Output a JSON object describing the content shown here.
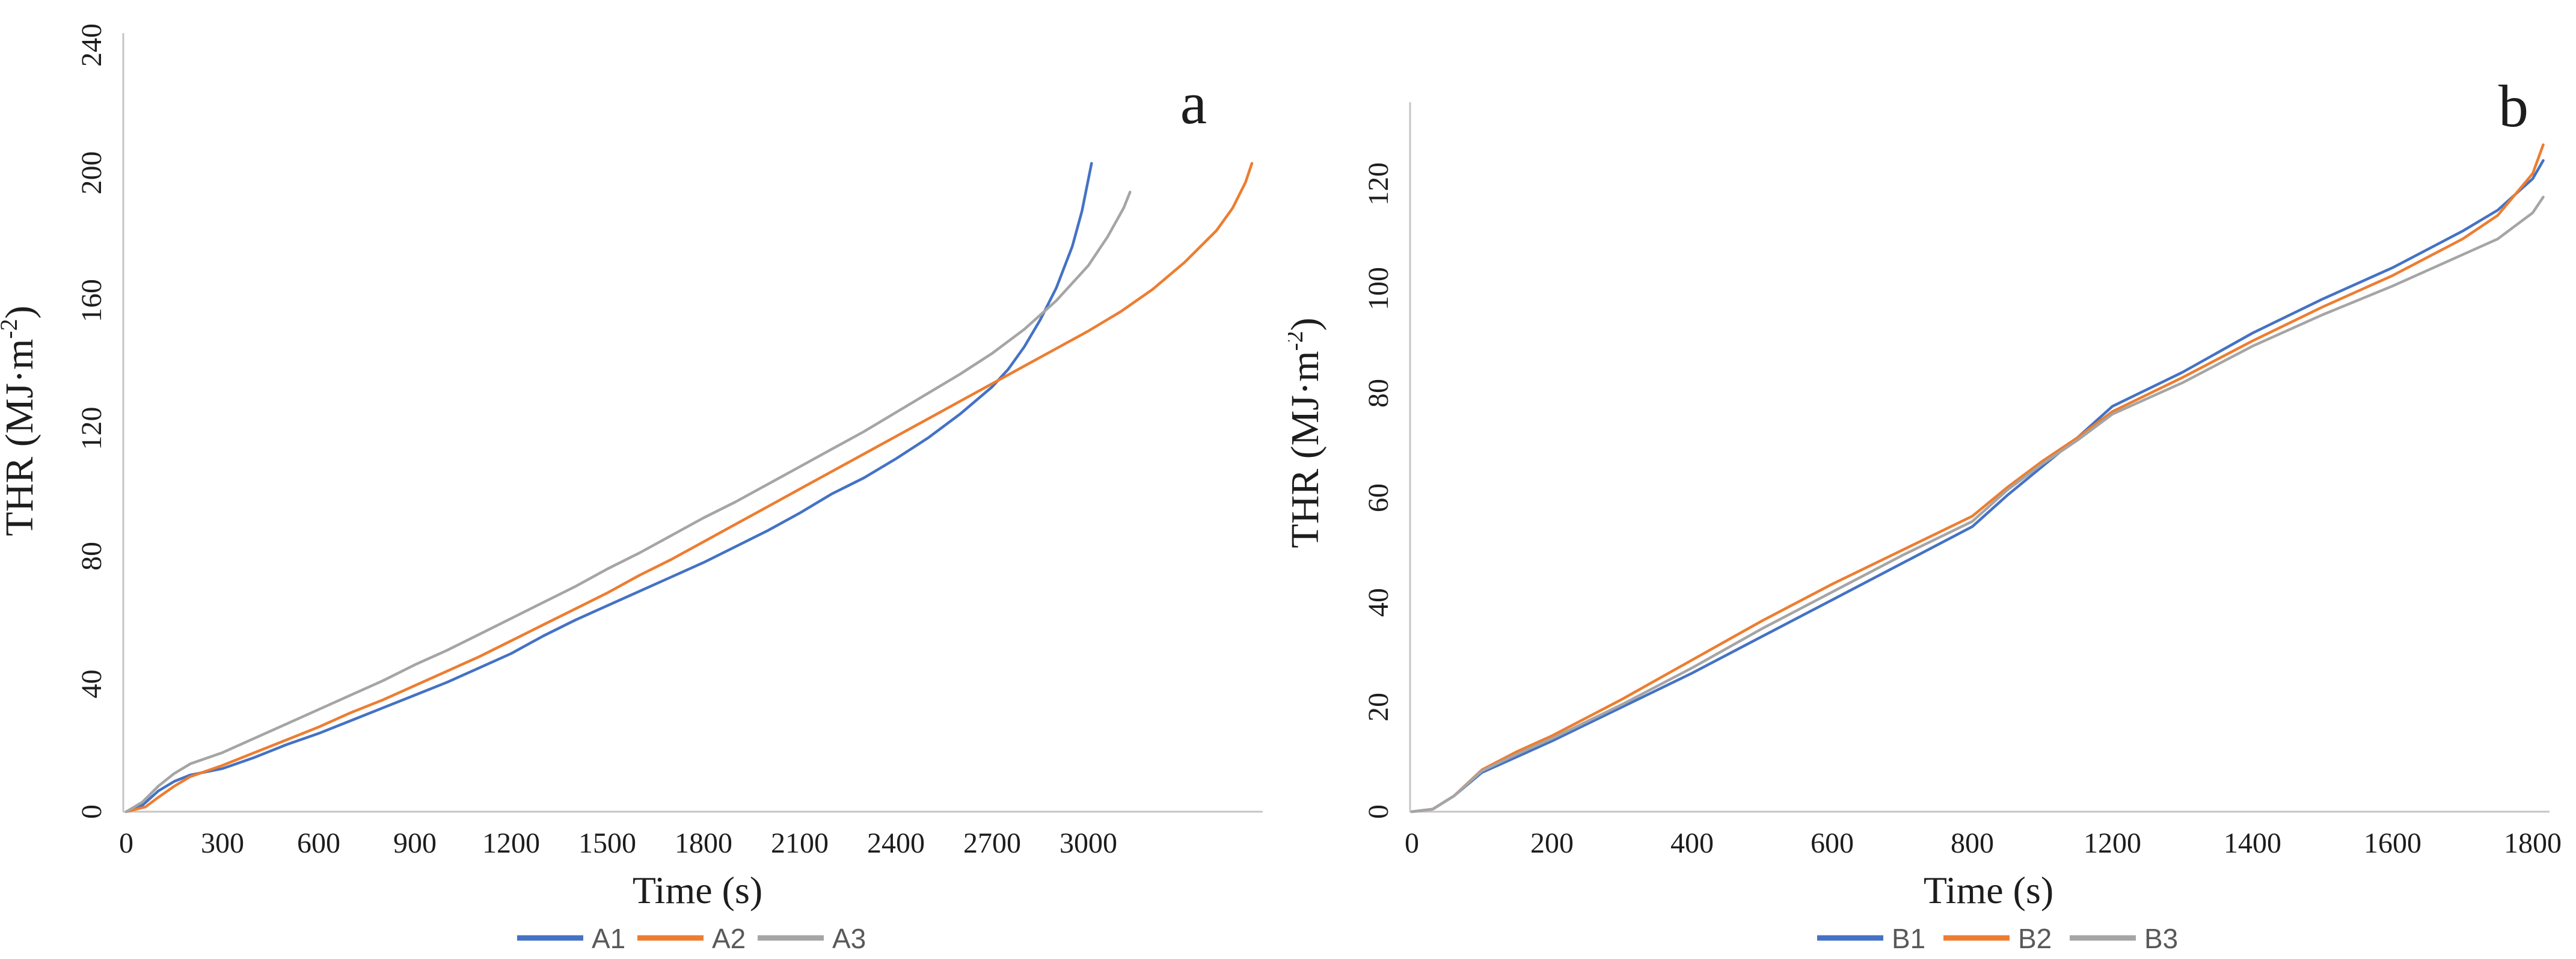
{
  "figure": {
    "background": "#ffffff",
    "axis_line_color": "#c6c6c6",
    "tick_text_color": "#1d1d1d",
    "legend_text_color": "#595959"
  },
  "chart_data": [
    {
      "type": "line",
      "panel_label": "a",
      "xlabel": "Time (s)",
      "ylabel": "THR (MJ·m⁻²)",
      "ylabel_parts": {
        "prefix": "THR (MJ·m",
        "sup": "-2",
        "suffix": ")"
      },
      "x_ticks": [
        0,
        300,
        600,
        900,
        1200,
        1500,
        1800,
        2100,
        2400,
        2700,
        3000
      ],
      "y_ticks": [
        0,
        40,
        80,
        120,
        160,
        200,
        240
      ],
      "xlim": [
        0,
        3540
      ],
      "ylim": [
        0,
        240
      ],
      "grid": false,
      "legend_position": "bottom",
      "series": [
        {
          "name": "A1",
          "color": "#4472C4",
          "points": [
            [
              0,
              0
            ],
            [
              50,
              2
            ],
            [
              100,
              6.5
            ],
            [
              150,
              9.5
            ],
            [
              200,
              11.5
            ],
            [
              300,
              13.5
            ],
            [
              400,
              17
            ],
            [
              500,
              21
            ],
            [
              600,
              24.5
            ],
            [
              700,
              28.5
            ],
            [
              800,
              32.5
            ],
            [
              900,
              36.5
            ],
            [
              1000,
              40.5
            ],
            [
              1100,
              45
            ],
            [
              1200,
              49.5
            ],
            [
              1300,
              55
            ],
            [
              1400,
              60
            ],
            [
              1500,
              64.5
            ],
            [
              1600,
              69
            ],
            [
              1700,
              73.5
            ],
            [
              1800,
              78
            ],
            [
              1900,
              83
            ],
            [
              2000,
              88
            ],
            [
              2100,
              93.5
            ],
            [
              2200,
              99.5
            ],
            [
              2300,
              104.5
            ],
            [
              2400,
              110.5
            ],
            [
              2500,
              117
            ],
            [
              2600,
              124.5
            ],
            [
              2700,
              133
            ],
            [
              2750,
              138.5
            ],
            [
              2800,
              145.5
            ],
            [
              2850,
              154
            ],
            [
              2900,
              164
            ],
            [
              2950,
              177
            ],
            [
              2980,
              188
            ],
            [
              3010,
              203
            ]
          ]
        },
        {
          "name": "A2",
          "color": "#ED7D31",
          "points": [
            [
              0,
              0
            ],
            [
              60,
              1.5
            ],
            [
              100,
              4.5
            ],
            [
              150,
              8
            ],
            [
              200,
              11
            ],
            [
              300,
              14.5
            ],
            [
              400,
              18.5
            ],
            [
              500,
              22.5
            ],
            [
              600,
              26.5
            ],
            [
              700,
              31
            ],
            [
              800,
              35
            ],
            [
              900,
              39.5
            ],
            [
              1000,
              44
            ],
            [
              1100,
              48.5
            ],
            [
              1200,
              53.5
            ],
            [
              1300,
              58.5
            ],
            [
              1400,
              63.5
            ],
            [
              1500,
              68.5
            ],
            [
              1600,
              74
            ],
            [
              1700,
              79
            ],
            [
              1800,
              84.5
            ],
            [
              1900,
              90
            ],
            [
              2000,
              95.5
            ],
            [
              2100,
              101
            ],
            [
              2200,
              106.5
            ],
            [
              2300,
              112
            ],
            [
              2400,
              117.5
            ],
            [
              2500,
              123
            ],
            [
              2600,
              128.5
            ],
            [
              2700,
              134
            ],
            [
              2800,
              139.5
            ],
            [
              2900,
              145
            ],
            [
              3000,
              150.5
            ],
            [
              3100,
              156.5
            ],
            [
              3200,
              163.5
            ],
            [
              3300,
              172
            ],
            [
              3400,
              182
            ],
            [
              3450,
              189
            ],
            [
              3490,
              197
            ],
            [
              3510,
              203
            ]
          ]
        },
        {
          "name": "A3",
          "color": "#A5A5A5",
          "points": [
            [
              0,
              0
            ],
            [
              50,
              3
            ],
            [
              100,
              8
            ],
            [
              150,
              12
            ],
            [
              200,
              15
            ],
            [
              300,
              18.5
            ],
            [
              400,
              23
            ],
            [
              500,
              27.5
            ],
            [
              600,
              32
            ],
            [
              700,
              36.5
            ],
            [
              800,
              41
            ],
            [
              900,
              46
            ],
            [
              1000,
              50.5
            ],
            [
              1100,
              55.5
            ],
            [
              1200,
              60.5
            ],
            [
              1300,
              65.5
            ],
            [
              1400,
              70.5
            ],
            [
              1500,
              76
            ],
            [
              1600,
              81
            ],
            [
              1700,
              86.5
            ],
            [
              1800,
              92
            ],
            [
              1900,
              97
            ],
            [
              2000,
              102.5
            ],
            [
              2100,
              108
            ],
            [
              2200,
              113.5
            ],
            [
              2300,
              119
            ],
            [
              2400,
              125
            ],
            [
              2500,
              131
            ],
            [
              2600,
              137
            ],
            [
              2700,
              143.5
            ],
            [
              2800,
              151
            ],
            [
              2900,
              160
            ],
            [
              3000,
              171
            ],
            [
              3060,
              180
            ],
            [
              3110,
              189
            ],
            [
              3130,
              194
            ]
          ]
        }
      ]
    },
    {
      "type": "line",
      "panel_label": "b",
      "xlabel": "Time (s)",
      "ylabel": "THR (MJ·m⁻²)",
      "ylabel_parts": {
        "prefix": "THR (MJ·m",
        "sup": "-2",
        "suffix": ")"
      },
      "x_ticks": [
        0,
        200,
        400,
        600,
        800,
        1200,
        1400,
        1600,
        1800
      ],
      "y_ticks": [
        0,
        20,
        40,
        60,
        80,
        100,
        120
      ],
      "xlim": [
        0,
        1830
      ],
      "ylim": [
        0,
        130
      ],
      "grid": false,
      "legend_position": "bottom",
      "x_tick_note": "labels evenly spaced; 1000 label skipped between 800 and 1200",
      "series": [
        {
          "name": "B1",
          "color": "#4472C4",
          "points": [
            [
              0,
              0
            ],
            [
              30,
              0.5
            ],
            [
              60,
              3
            ],
            [
              100,
              7.5
            ],
            [
              150,
              10.5
            ],
            [
              200,
              13.5
            ],
            [
              300,
              20
            ],
            [
              400,
              26.5
            ],
            [
              500,
              33.5
            ],
            [
              600,
              40.5
            ],
            [
              700,
              47.5
            ],
            [
              800,
              54.5
            ],
            [
              900,
              60.5
            ],
            [
              1000,
              66
            ],
            [
              1100,
              71.5
            ],
            [
              1200,
              77.5
            ],
            [
              1300,
              84
            ],
            [
              1400,
              91.5
            ],
            [
              1500,
              98
            ],
            [
              1600,
              104
            ],
            [
              1700,
              111
            ],
            [
              1750,
              115
            ],
            [
              1800,
              121
            ],
            [
              1815,
              124.5
            ]
          ]
        },
        {
          "name": "B2",
          "color": "#ED7D31",
          "points": [
            [
              0,
              0
            ],
            [
              30,
              0.5
            ],
            [
              60,
              3
            ],
            [
              100,
              8
            ],
            [
              150,
              11.5
            ],
            [
              200,
              14.5
            ],
            [
              300,
              21.5
            ],
            [
              400,
              29
            ],
            [
              500,
              36.5
            ],
            [
              600,
              43.5
            ],
            [
              700,
              50
            ],
            [
              800,
              56.5
            ],
            [
              900,
              62
            ],
            [
              1000,
              67
            ],
            [
              1100,
              71.5
            ],
            [
              1200,
              76.5
            ],
            [
              1300,
              83
            ],
            [
              1400,
              90
            ],
            [
              1500,
              96.5
            ],
            [
              1600,
              102.5
            ],
            [
              1700,
              109.5
            ],
            [
              1750,
              114
            ],
            [
              1800,
              122
            ],
            [
              1815,
              127.5
            ]
          ]
        },
        {
          "name": "B3",
          "color": "#A5A5A5",
          "points": [
            [
              0,
              0
            ],
            [
              30,
              0.5
            ],
            [
              60,
              3
            ],
            [
              100,
              7.8
            ],
            [
              150,
              11
            ],
            [
              200,
              14
            ],
            [
              300,
              20.5
            ],
            [
              400,
              27.5
            ],
            [
              500,
              35
            ],
            [
              600,
              42
            ],
            [
              700,
              49
            ],
            [
              800,
              55.5
            ],
            [
              900,
              61.5
            ],
            [
              1000,
              66.5
            ],
            [
              1100,
              71
            ],
            [
              1200,
              76
            ],
            [
              1300,
              82
            ],
            [
              1400,
              89
            ],
            [
              1500,
              95
            ],
            [
              1600,
              100.5
            ],
            [
              1700,
              106.5
            ],
            [
              1750,
              109.5
            ],
            [
              1800,
              114.5
            ],
            [
              1815,
              117.5
            ]
          ]
        }
      ]
    }
  ]
}
